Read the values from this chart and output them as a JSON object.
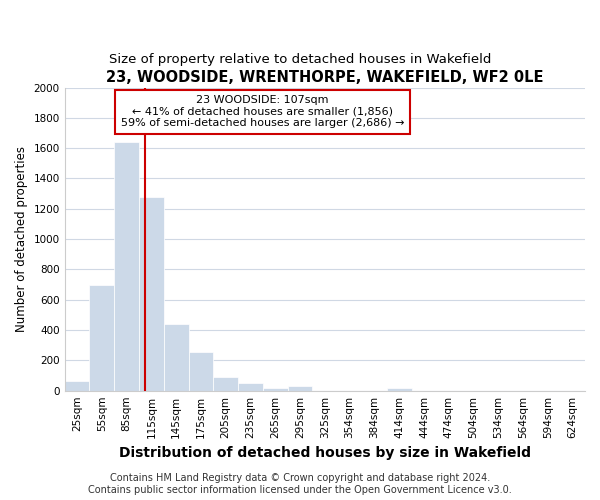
{
  "title": "23, WOODSIDE, WRENTHORPE, WAKEFIELD, WF2 0LE",
  "subtitle": "Size of property relative to detached houses in Wakefield",
  "xlabel": "Distribution of detached houses by size in Wakefield",
  "ylabel": "Number of detached properties",
  "bar_color": "#ccd9e8",
  "bar_edge_color": "#ccd9e8",
  "categories": [
    "25sqm",
    "55sqm",
    "85sqm",
    "115sqm",
    "145sqm",
    "175sqm",
    "205sqm",
    "235sqm",
    "265sqm",
    "295sqm",
    "325sqm",
    "354sqm",
    "384sqm",
    "414sqm",
    "444sqm",
    "474sqm",
    "504sqm",
    "534sqm",
    "564sqm",
    "594sqm",
    "624sqm"
  ],
  "values": [
    65,
    695,
    1640,
    1280,
    440,
    255,
    88,
    52,
    18,
    28,
    0,
    0,
    0,
    18,
    0,
    0,
    0,
    0,
    0,
    0,
    0
  ],
  "ylim": [
    0,
    2000
  ],
  "yticks": [
    0,
    200,
    400,
    600,
    800,
    1000,
    1200,
    1400,
    1600,
    1800,
    2000
  ],
  "annotation_text": "23 WOODSIDE: 107sqm\n← 41% of detached houses are smaller (1,856)\n59% of semi-detached houses are larger (2,686) →",
  "annotation_box_color": "#ffffff",
  "annotation_box_edge": "#cc0000",
  "red_line_color": "#cc0000",
  "background_color": "#ffffff",
  "plot_bg_color": "#ffffff",
  "grid_color": "#d0d8e4",
  "footer_line1": "Contains HM Land Registry data © Crown copyright and database right 2024.",
  "footer_line2": "Contains public sector information licensed under the Open Government Licence v3.0.",
  "title_fontsize": 10.5,
  "subtitle_fontsize": 9.5,
  "xlabel_fontsize": 10,
  "ylabel_fontsize": 8.5,
  "tick_fontsize": 7.5,
  "annotation_fontsize": 8,
  "footer_fontsize": 7
}
